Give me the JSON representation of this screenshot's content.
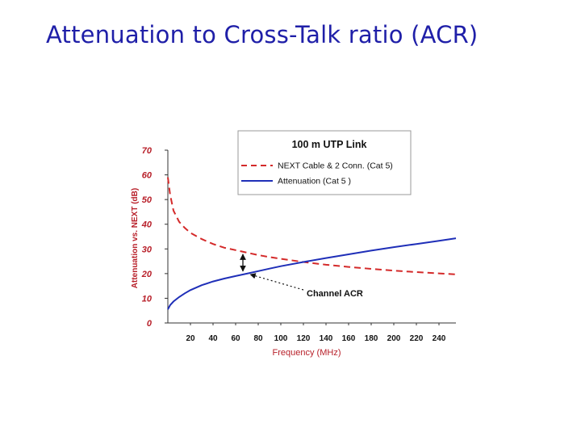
{
  "slide": {
    "title": "Attenuation to Cross-Talk ratio (ACR)"
  },
  "colors": {
    "title": "#1f1fa8",
    "next_series": "#d42a2a",
    "attenuation_series": "#1f2fb8",
    "axis_text": "#b8202a"
  },
  "chart_data": {
    "type": "line",
    "title": "100 m UTP Link",
    "xlabel": "Frequency (MHz)",
    "ylabel": "Attenuation vs. NEXT (dB)",
    "xlim": [
      0,
      255
    ],
    "ylim": [
      0,
      70
    ],
    "x_ticks": [
      20,
      40,
      60,
      80,
      100,
      120,
      140,
      160,
      180,
      200,
      220,
      240
    ],
    "y_ticks": [
      0,
      10,
      20,
      30,
      40,
      50,
      60,
      70
    ],
    "grid": false,
    "legend": "top-right",
    "series": [
      {
        "name": "NEXT Cable & 2 Conn. (Cat 5)",
        "style": "dashed",
        "color": "#d42a2a",
        "x": [
          0,
          2,
          5,
          10,
          15,
          20,
          30,
          40,
          50,
          60,
          70,
          80,
          90,
          100,
          120,
          140,
          160,
          180,
          200,
          220,
          240,
          255
        ],
        "y": [
          59,
          52,
          45.5,
          41,
          38.5,
          36.5,
          34,
          32,
          30.5,
          29.5,
          28.5,
          27.5,
          26.7,
          26,
          24.7,
          23.6,
          22.7,
          21.9,
          21.2,
          20.6,
          20.1,
          19.7
        ]
      },
      {
        "name": "Attenuation  (Cat 5 )",
        "style": "solid",
        "color": "#1f2fb8",
        "x": [
          0,
          2,
          5,
          10,
          15,
          20,
          30,
          40,
          50,
          60,
          70,
          80,
          90,
          100,
          120,
          140,
          160,
          180,
          200,
          220,
          240,
          255
        ],
        "y": [
          5.5,
          7.2,
          8.7,
          10.5,
          12,
          13.3,
          15.3,
          16.8,
          18,
          19,
          20,
          21,
          22,
          23,
          24.7,
          26.3,
          27.8,
          29.3,
          30.7,
          32,
          33.3,
          34.3
        ]
      }
    ],
    "annotations": [
      {
        "text": "Channel ACR",
        "at_x": 70
      }
    ]
  }
}
